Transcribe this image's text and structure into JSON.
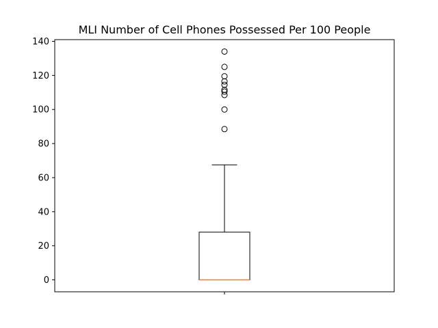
{
  "chart_data": {
    "type": "boxplot",
    "title": "MLI Number of Cell Phones Possessed Per 100 People",
    "xlabel": "",
    "ylabel": "",
    "ylim": [
      -7,
      141
    ],
    "yticks": [
      0,
      20,
      40,
      60,
      80,
      100,
      120,
      140
    ],
    "xticks": [
      ""
    ],
    "grid": false,
    "box": {
      "whisker_low": 0,
      "q1": 0,
      "median": 0,
      "q3": 28,
      "whisker_high": 67.5,
      "outliers": [
        88.5,
        100,
        108.5,
        110.5,
        111.5,
        114.5,
        116.5,
        119.5,
        125,
        134
      ]
    },
    "colors": {
      "box": "#000000",
      "median": "#ff7f0e",
      "outlier": "#000000"
    }
  }
}
